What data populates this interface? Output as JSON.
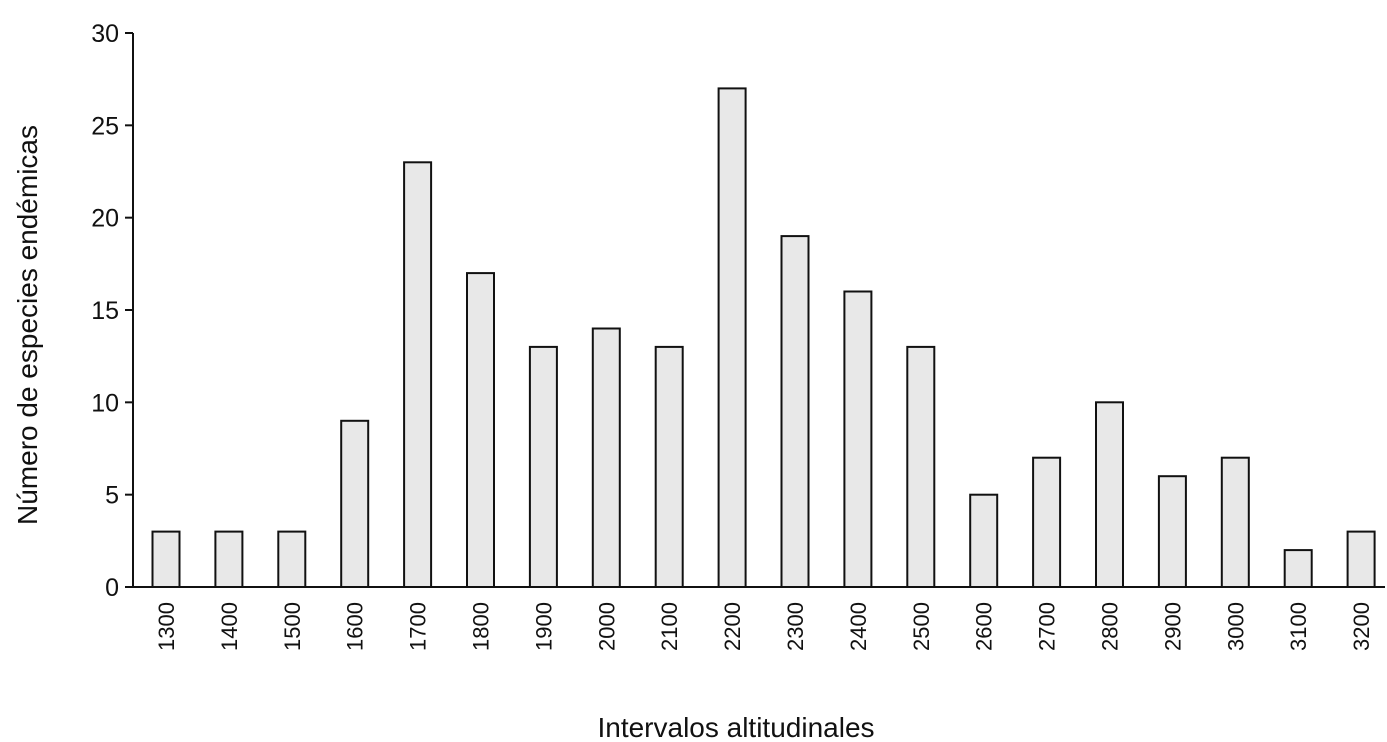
{
  "chart_data": {
    "type": "bar",
    "title": "",
    "xlabel": "Intervalos altitudinales",
    "ylabel": "Número de especies endémicas",
    "categories": [
      "1300",
      "1400",
      "1500",
      "1600",
      "1700",
      "1800",
      "1900",
      "2000",
      "2100",
      "2200",
      "2300",
      "2400",
      "2500",
      "2600",
      "2700",
      "2800",
      "2900",
      "3000",
      "3100",
      "3200"
    ],
    "values": [
      3,
      3,
      3,
      9,
      23,
      17,
      13,
      14,
      13,
      27,
      19,
      16,
      13,
      5,
      7,
      10,
      6,
      7,
      2,
      3
    ],
    "ylim": [
      0,
      30
    ],
    "yticks": [
      0,
      5,
      10,
      15,
      20,
      25,
      30
    ],
    "grid": false,
    "legend": "none",
    "bar_fill": "#e8e8e8",
    "bar_stroke": "#111111"
  }
}
